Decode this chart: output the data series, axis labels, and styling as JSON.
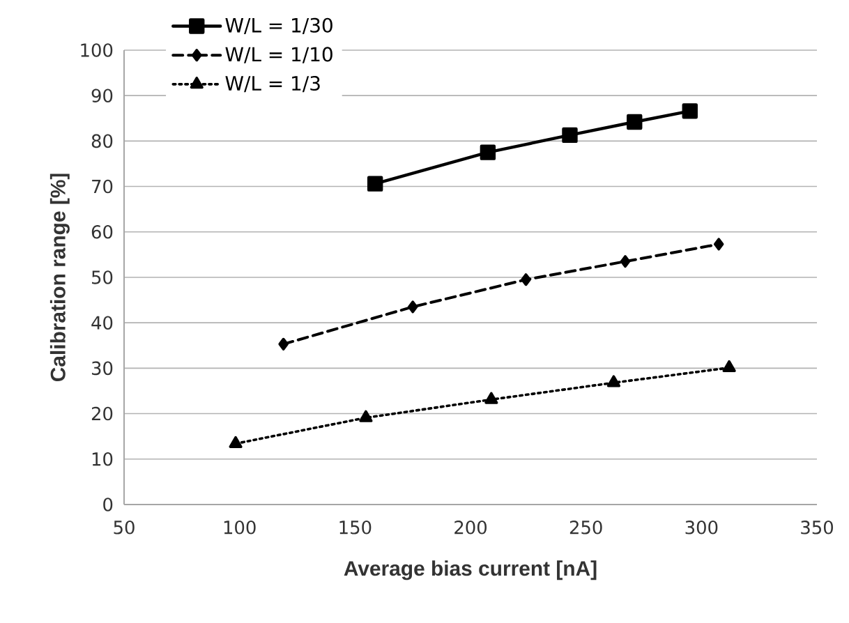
{
  "chart_data": {
    "type": "line",
    "xlabel": "Average bias current [nA]",
    "ylabel": "Calibration range [%]",
    "xlim": [
      50,
      350
    ],
    "xticks": [
      50,
      100,
      150,
      200,
      250,
      300,
      350
    ],
    "ylim": [
      0,
      100
    ],
    "yticks": [
      0,
      10,
      20,
      30,
      40,
      50,
      60,
      70,
      80,
      90,
      100
    ],
    "grid": "y",
    "legend": "top left",
    "series": [
      {
        "name": "W/L = 1/30",
        "color": "#000000",
        "marker": "square",
        "line_style": "solid",
        "x": [
          158.7,
          207.5,
          243,
          271,
          295
        ],
        "values": [
          70.6,
          77.5,
          81.3,
          84.2,
          86.6
        ]
      },
      {
        "name": "W/L = 1/10",
        "color": "#000000",
        "marker": "diamond",
        "line_style": "dashed",
        "x": [
          119,
          175,
          224,
          267,
          307.5
        ],
        "values": [
          35.3,
          43.5,
          49.5,
          53.5,
          57.3
        ]
      },
      {
        "name": "W/L = 1/3",
        "color": "#000000",
        "marker": "triangle",
        "line_style": "dotted",
        "x": [
          98.3,
          154.7,
          209,
          262,
          312
        ],
        "values": [
          13.4,
          19.1,
          23.1,
          26.8,
          30.1
        ]
      }
    ]
  }
}
